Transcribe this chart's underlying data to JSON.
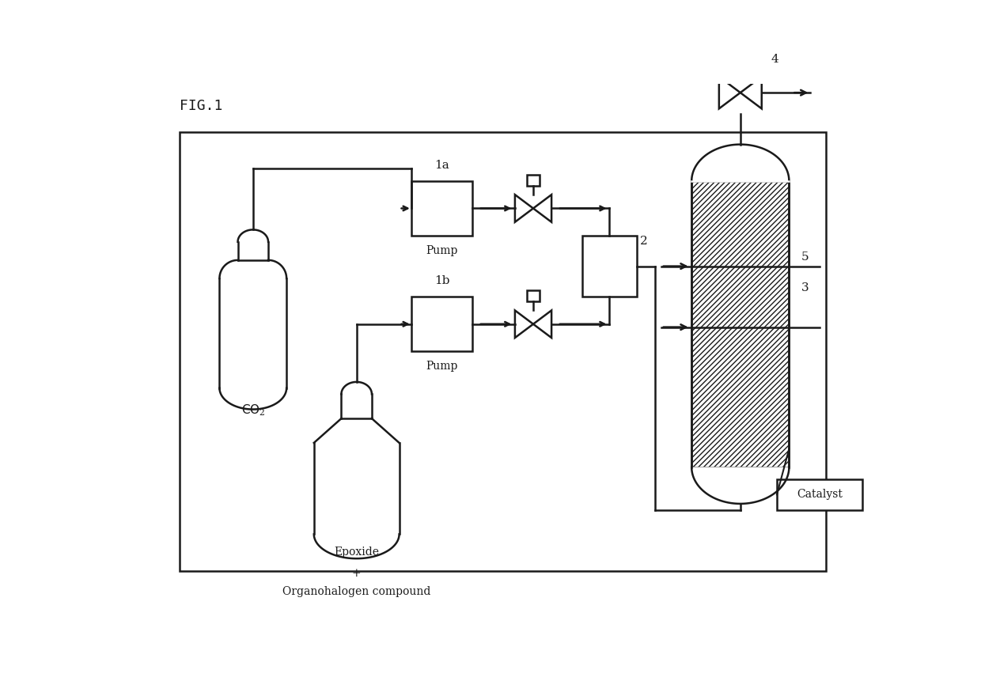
{
  "title": "FIG.1",
  "background": "#ffffff",
  "line_color": "#1a1a1a",
  "lw": 1.8,
  "fig_width": 12.4,
  "fig_height": 8.8,
  "labels": {
    "fig": "FIG.1",
    "1a": "1a",
    "1b": "1b",
    "2": "2",
    "3": "3",
    "4": "4",
    "5": "5",
    "pump1": "Pump",
    "pump2": "Pump",
    "co2": "CO$_2$",
    "epoxide_line1": "Epoxide",
    "epoxide_line2": "+",
    "epoxide_line3": "Organohalogen compound",
    "catalyst": "Catalyst"
  }
}
